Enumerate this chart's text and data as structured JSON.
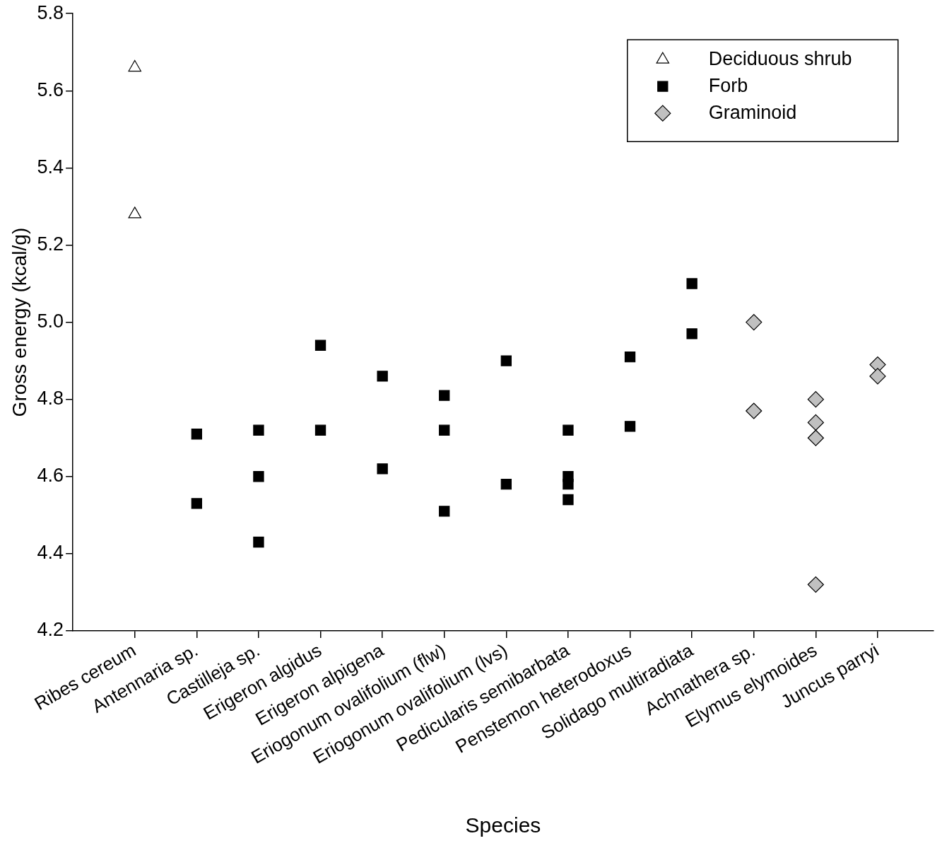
{
  "chart_data": {
    "type": "scatter",
    "xlabel": "Species",
    "ylabel": "Gross energy (kcal/g)",
    "categories": [
      "Ribes cereum",
      "Antennaria sp.",
      "Castilleja sp.",
      "Erigeron algidus",
      "Erigeron alpigena",
      "Eriogonum ovalifolium (flw)",
      "Eriogonum ovalifolium (lvs)",
      "Pedicularis semibarbata",
      "Penstemon heterodoxus",
      "Solidago multiradiata",
      "Achnathera sp.",
      "Elymus elymoides",
      "Juncus parryi"
    ],
    "series": [
      {
        "name": "Deciduous shrub",
        "color": "#ffffff",
        "marker": "triangle",
        "x": [
          "Ribes cereum",
          "Ribes cereum"
        ],
        "values": [
          5.66,
          5.28
        ]
      },
      {
        "name": "Forb",
        "color": "#000000",
        "marker": "square",
        "x": [
          "Antennaria sp.",
          "Antennaria sp.",
          "Castilleja sp.",
          "Castilleja sp.",
          "Castilleja sp.",
          "Erigeron algidus",
          "Erigeron algidus",
          "Erigeron alpigena",
          "Erigeron alpigena",
          "Eriogonum ovalifolium (flw)",
          "Eriogonum ovalifolium (flw)",
          "Eriogonum ovalifolium (flw)",
          "Eriogonum ovalifolium (lvs)",
          "Eriogonum ovalifolium (lvs)",
          "Pedicularis semibarbata",
          "Pedicularis semibarbata",
          "Pedicularis semibarbata",
          "Pedicularis semibarbata",
          "Penstemon heterodoxus",
          "Penstemon heterodoxus",
          "Solidago multiradiata",
          "Solidago multiradiata"
        ],
        "values": [
          4.71,
          4.53,
          4.72,
          4.6,
          4.43,
          4.94,
          4.72,
          4.86,
          4.62,
          4.81,
          4.72,
          4.51,
          4.9,
          4.58,
          4.72,
          4.6,
          4.58,
          4.54,
          4.91,
          4.73,
          5.1,
          4.97
        ]
      },
      {
        "name": "Graminoid",
        "color": "#c0c0c0",
        "marker": "diamond",
        "x": [
          "Achnathera sp.",
          "Achnathera sp.",
          "Elymus elymoides",
          "Elymus elymoides",
          "Elymus elymoides",
          "Elymus elymoides",
          "Juncus parryi",
          "Juncus parryi"
        ],
        "values": [
          5.0,
          4.77,
          4.8,
          4.74,
          4.7,
          4.32,
          4.89,
          4.86
        ]
      }
    ],
    "ylim": [
      4.2,
      5.8
    ],
    "yticks": [
      4.2,
      4.4,
      4.6,
      4.8,
      {
        "value": 5,
        "label": "5.0"
      },
      5.2,
      5.4,
      5.6,
      5.8
    ],
    "grid": false,
    "legend": "top right"
  }
}
